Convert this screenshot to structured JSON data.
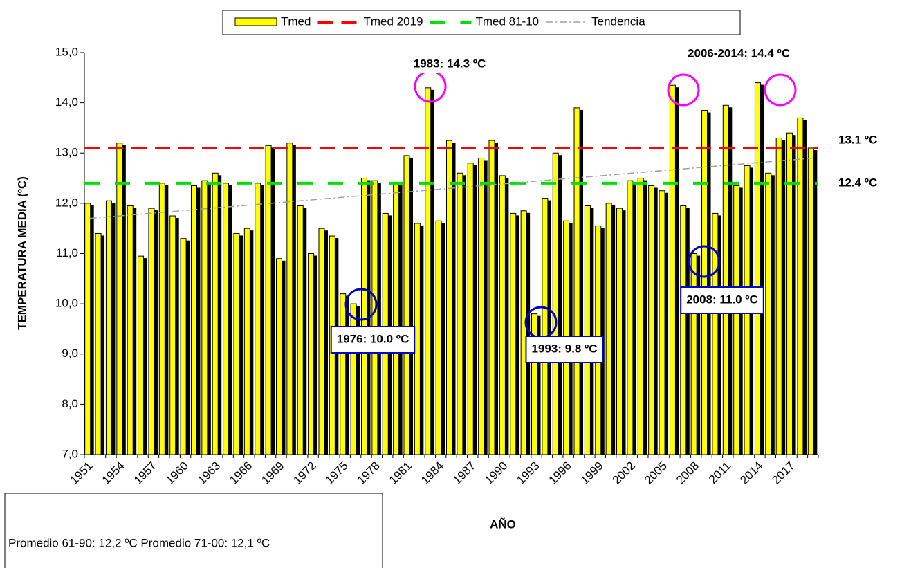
{
  "chart_data": {
    "type": "bar",
    "y_label": "TEMPERATURA MEDIA (ºC)",
    "x_label": "AÑO",
    "categories": [
      "1951",
      null,
      null,
      "1954",
      null,
      null,
      "1957",
      null,
      null,
      "1960",
      null,
      null,
      "1963",
      null,
      null,
      "1966",
      null,
      null,
      "1969",
      null,
      null,
      "1972",
      null,
      null,
      "1975",
      null,
      null,
      "1978",
      null,
      null,
      "1981",
      null,
      null,
      "1984",
      null,
      null,
      "1987",
      null,
      null,
      "1990",
      null,
      null,
      "1993",
      null,
      null,
      "1996",
      null,
      null,
      "1999",
      null,
      null,
      "2002",
      null,
      null,
      "2005",
      null,
      null,
      "2008",
      null,
      null,
      "2011",
      null,
      null,
      "2014",
      null,
      null,
      "2017",
      null,
      null
    ],
    "series": [
      {
        "name": "Tmed",
        "color": "#ffff00",
        "values": [
          12.0,
          11.4,
          12.05,
          13.2,
          11.95,
          10.95,
          11.9,
          12.4,
          11.75,
          11.3,
          12.35,
          12.45,
          12.6,
          12.4,
          11.4,
          11.5,
          12.4,
          13.15,
          10.9,
          13.2,
          11.95,
          11.0,
          11.5,
          11.35,
          10.2,
          10.0,
          12.5,
          12.45,
          11.8,
          12.4,
          12.95,
          11.6,
          14.3,
          11.65,
          13.25,
          12.6,
          12.8,
          12.9,
          13.25,
          12.55,
          11.8,
          11.85,
          9.8,
          12.1,
          13.0,
          11.65,
          13.9,
          11.95,
          11.55,
          12.0,
          11.9,
          12.45,
          12.5,
          12.35,
          12.25,
          14.35,
          11.95,
          11.0,
          13.85,
          11.8,
          13.95,
          12.35,
          12.75,
          14.4,
          12.6,
          13.3,
          13.4,
          13.7,
          13.1
        ]
      }
    ],
    "ylim": [
      7,
      15
    ],
    "yticks": [
      {
        "value": 7,
        "label": "7,0"
      },
      {
        "value": 8,
        "label": "8,0"
      },
      {
        "value": 9,
        "label": "9,0"
      },
      {
        "value": 10,
        "label": "10,0"
      },
      {
        "value": 11,
        "label": "11,0"
      },
      {
        "value": 12,
        "label": "12,0"
      },
      {
        "value": 13,
        "label": "13,0"
      },
      {
        "value": 14,
        "label": "14,0"
      },
      {
        "value": 15,
        "label": "15,0"
      }
    ],
    "reference_lines": [
      {
        "name": "Tmed 2019",
        "value": 13.1,
        "label": "13.1 ºC",
        "color": "#ff0000"
      },
      {
        "name": "Tmed 81-10",
        "value": 12.4,
        "label": "12.4 ºC",
        "color": "#00e000"
      }
    ],
    "trend": {
      "name": "Tendencia",
      "start": 11.7,
      "end": 12.9,
      "color": "#a0a0a0"
    },
    "annotations": [
      {
        "text": "1983: 14.3 ºC",
        "color": "#ff00ff"
      },
      {
        "text": "2006-2014: 14.4 ºC",
        "color": "#ff00ff"
      },
      {
        "text": "1976: 10.0 ºC",
        "color": "#0000cc"
      },
      {
        "text": "1993: 9.8 ºC",
        "color": "#0000cc"
      },
      {
        "text": "2008: 11.0 ºC",
        "color": "#0000cc"
      }
    ],
    "note": "Promedio 61-90: 12,2 ºC  Promedio 71-00: 12,1 ºC"
  }
}
